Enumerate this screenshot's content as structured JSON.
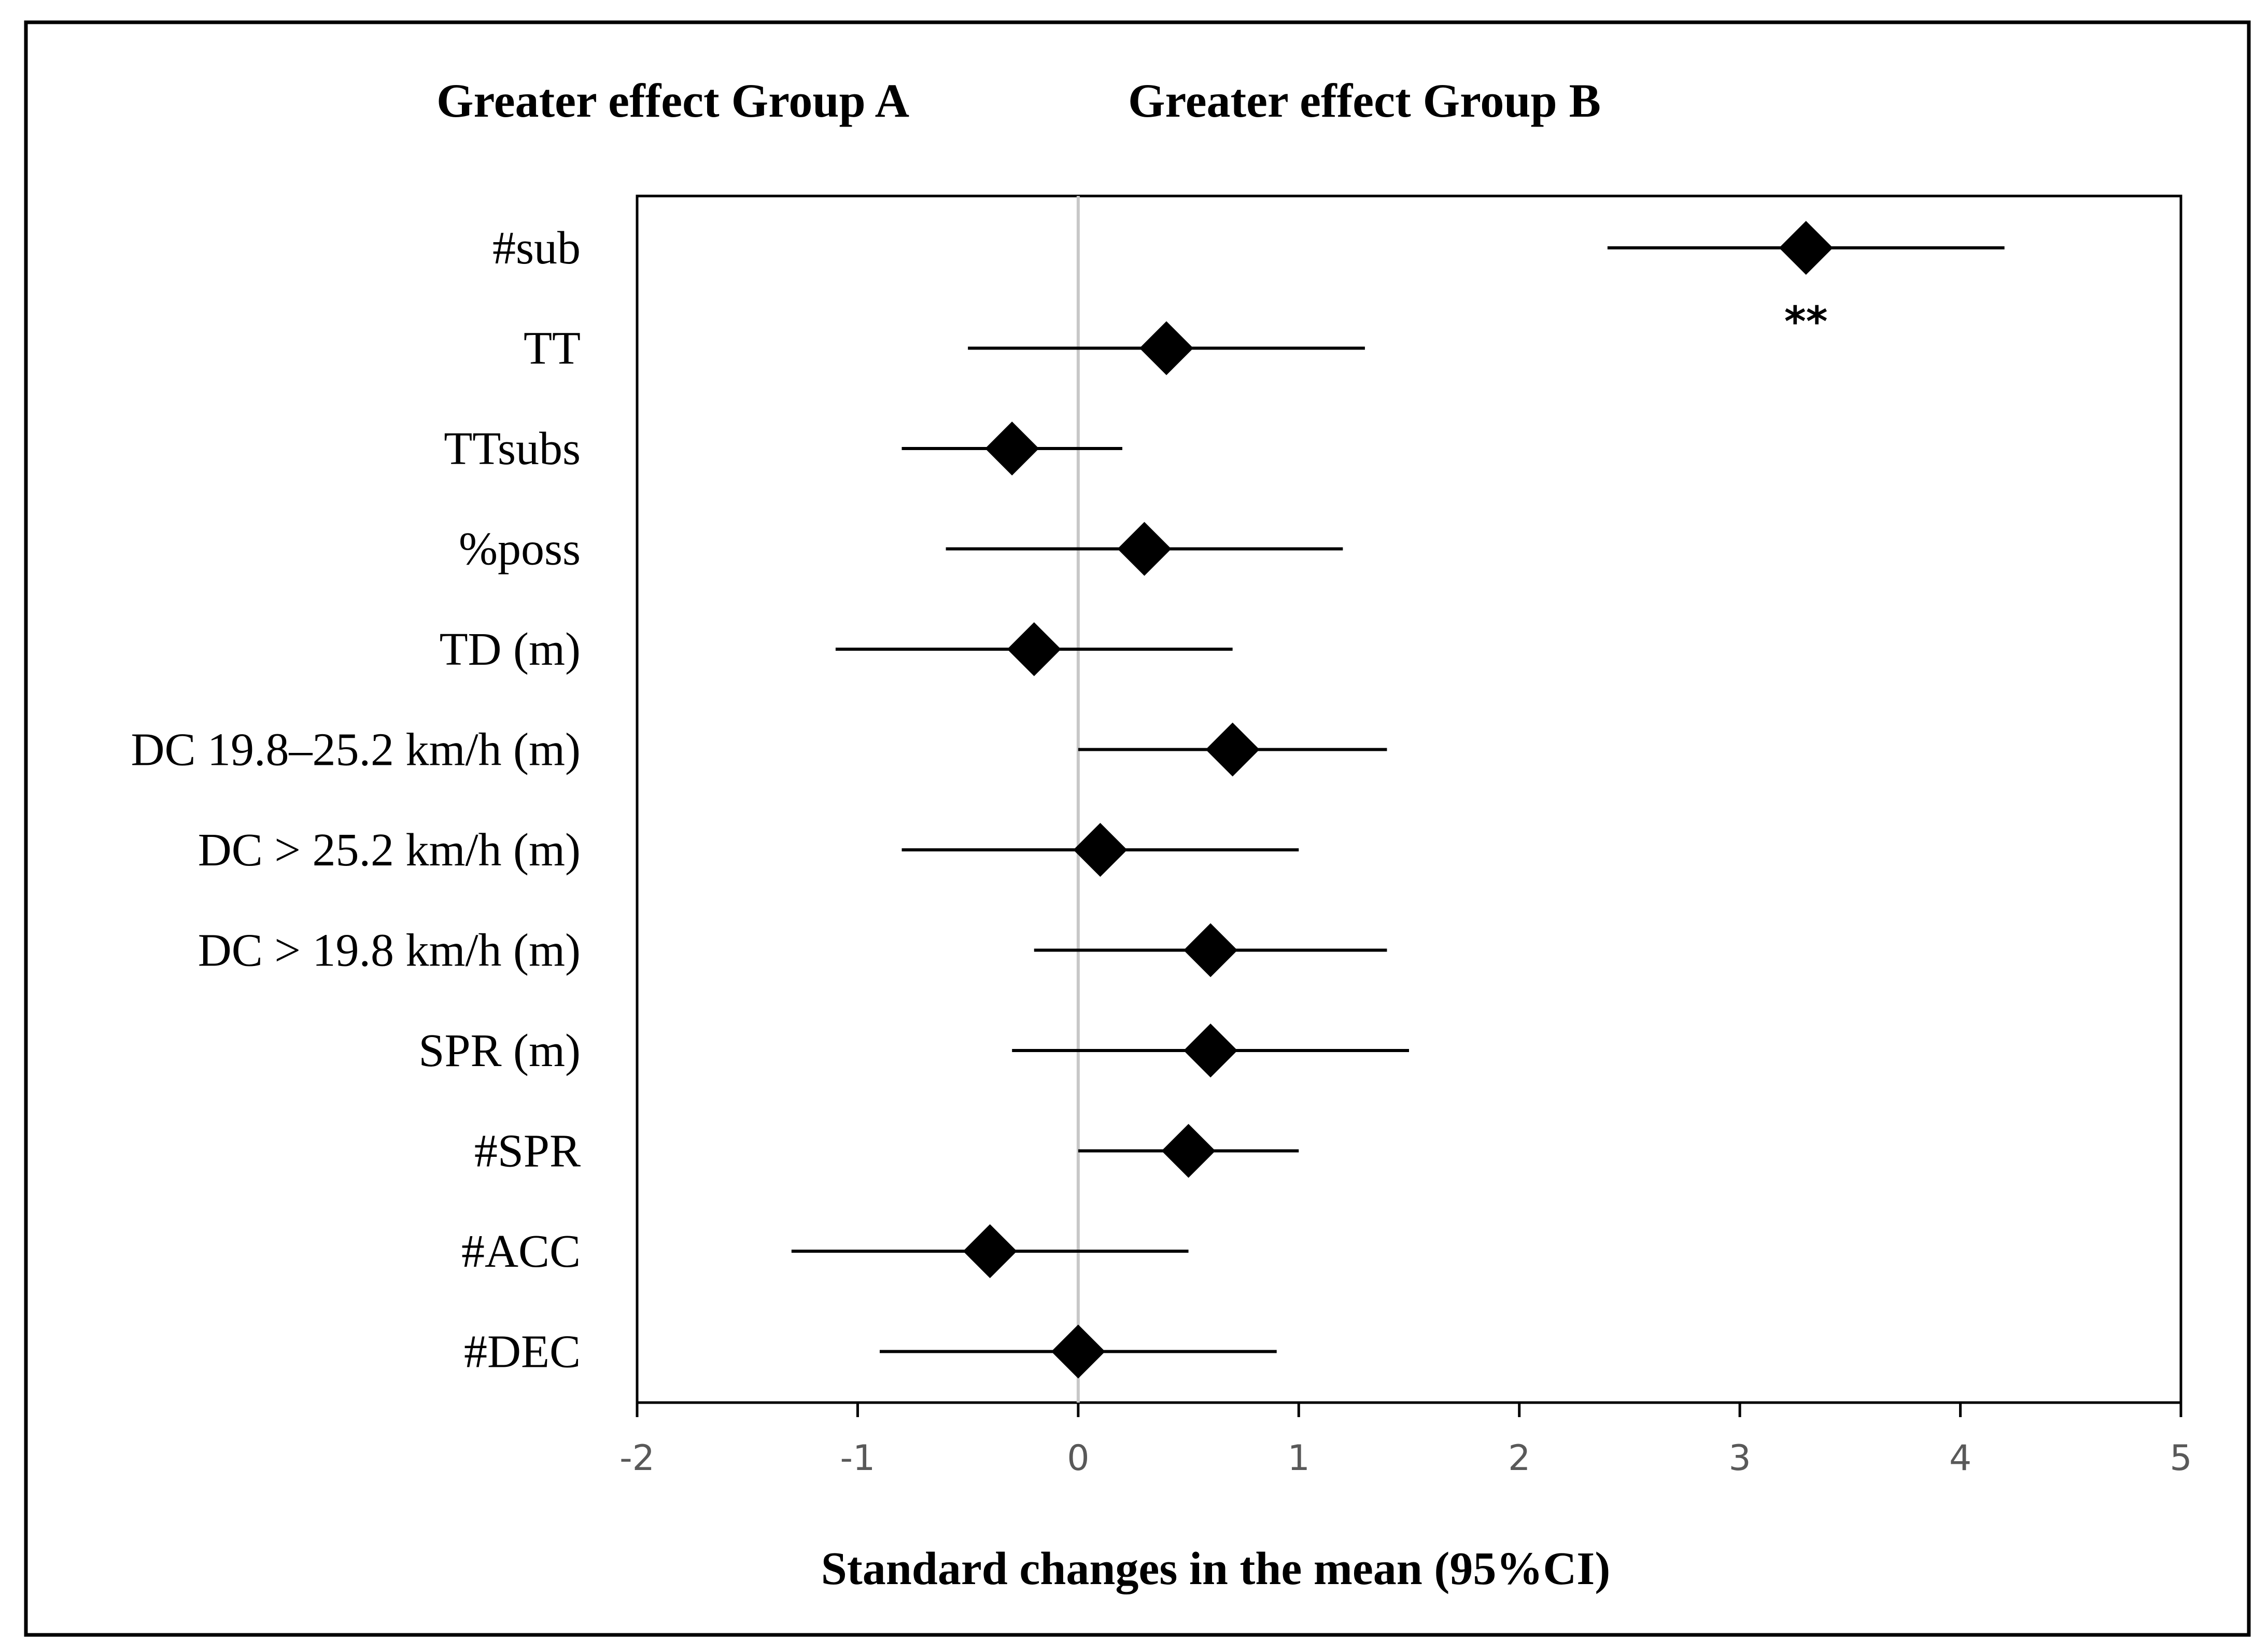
{
  "chart_data": {
    "type": "scatter",
    "subtype": "forest-plot",
    "header_left": "Greater effect Group A",
    "header_right": "Greater effect Group B",
    "xlabel": "Standard changes in the mean (95%CI)",
    "xlim": [
      -2,
      5
    ],
    "xticks": [
      "-2",
      "-1",
      "0",
      "1",
      "2",
      "3",
      "4",
      "5"
    ],
    "reference_line": 0,
    "grid": false,
    "categories": [
      "#sub",
      "TT",
      "TTsubs",
      "%poss",
      "TD (m)",
      "DC 19.8–25.2 km/h (m)",
      "DC > 25.2 km/h (m)",
      "DC > 19.8 km/h (m)",
      "SPR (m)",
      "#SPR",
      "#ACC",
      "#DEC"
    ],
    "points": [
      {
        "label": "#sub",
        "mean": 3.3,
        "lower": 2.4,
        "upper": 4.2,
        "annotation": "**"
      },
      {
        "label": "TT",
        "mean": 0.4,
        "lower": -0.5,
        "upper": 1.3
      },
      {
        "label": "TTsubs",
        "mean": -0.3,
        "lower": -0.8,
        "upper": 0.2
      },
      {
        "label": "%poss",
        "mean": 0.3,
        "lower": -0.6,
        "upper": 1.2
      },
      {
        "label": "TD (m)",
        "mean": -0.2,
        "lower": -1.1,
        "upper": 0.7
      },
      {
        "label": "DC 19.8–25.2 km/h (m)",
        "mean": 0.7,
        "lower": 0.0,
        "upper": 1.4
      },
      {
        "label": "DC > 25.2 km/h (m)",
        "mean": 0.1,
        "lower": -0.8,
        "upper": 1.0
      },
      {
        "label": "DC > 19.8 km/h (m)",
        "mean": 0.6,
        "lower": -0.2,
        "upper": 1.4
      },
      {
        "label": "SPR (m)",
        "mean": 0.6,
        "lower": -0.3,
        "upper": 1.5
      },
      {
        "label": "#SPR",
        "mean": 0.5,
        "lower": 0.0,
        "upper": 1.0
      },
      {
        "label": "#ACC",
        "mean": -0.4,
        "lower": -1.3,
        "upper": 0.5
      },
      {
        "label": "#DEC",
        "mean": 0.0,
        "lower": -0.9,
        "upper": 0.9
      }
    ]
  }
}
